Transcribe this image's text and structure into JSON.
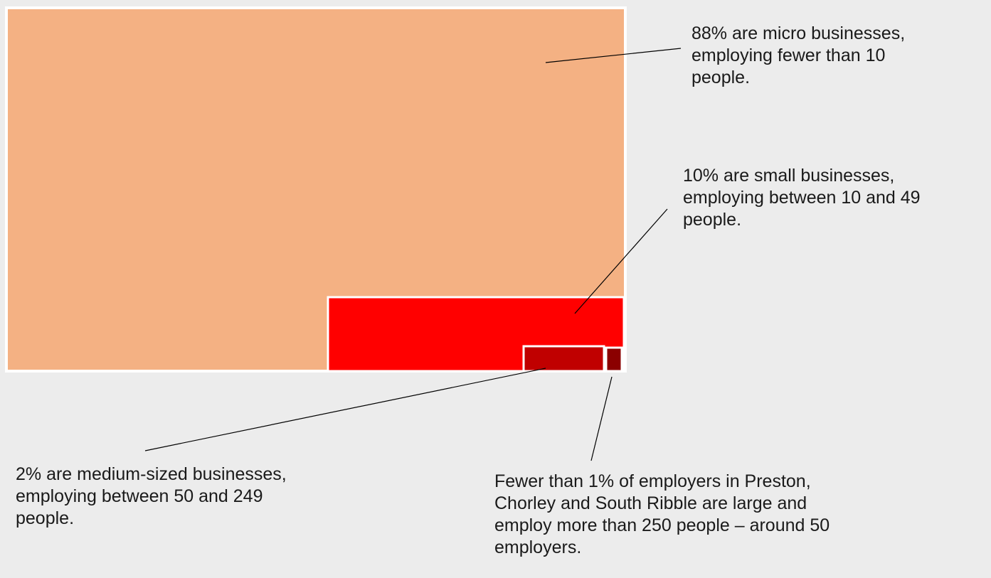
{
  "chart_data": {
    "type": "treemap",
    "title": "",
    "segments": [
      {
        "name": "micro",
        "percent": 88,
        "color": "#f4b183",
        "annotation": "88% are micro businesses,\nemploying fewer than 10\npeople."
      },
      {
        "name": "small",
        "percent": 10,
        "color": "#ff0000",
        "annotation": "10% are small businesses,\nemploying between 10 and 49\npeople."
      },
      {
        "name": "medium",
        "percent": 2,
        "color": "#c00000",
        "annotation": "2% are medium-sized businesses,\nemploying between 50 and 249\npeople."
      },
      {
        "name": "large",
        "percent": "Fewer than 1%",
        "color": "#8b0000",
        "annotation": "Fewer than 1% of employers in Preston,\nChorley and South Ribble are large and\nemploy more than 250 people – around 50\nemployers."
      }
    ]
  }
}
